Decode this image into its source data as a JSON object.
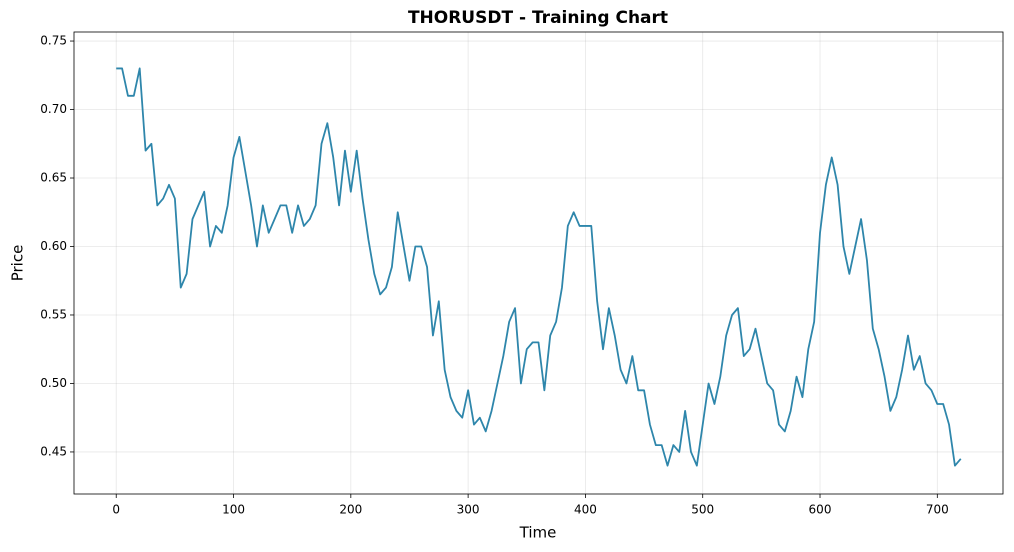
{
  "chart_data": {
    "type": "line",
    "title": "THORUSDT - Training Chart",
    "x_label": "Time",
    "y_label": "Price",
    "x": [
      0,
      5,
      10,
      15,
      20,
      25,
      30,
      35,
      40,
      45,
      50,
      55,
      60,
      65,
      70,
      75,
      80,
      85,
      90,
      95,
      100,
      105,
      110,
      115,
      120,
      125,
      130,
      135,
      140,
      145,
      150,
      155,
      160,
      165,
      170,
      175,
      180,
      185,
      190,
      195,
      200,
      205,
      210,
      215,
      220,
      225,
      230,
      235,
      240,
      245,
      250,
      255,
      260,
      265,
      270,
      275,
      280,
      285,
      290,
      295,
      300,
      305,
      310,
      315,
      320,
      325,
      330,
      335,
      340,
      345,
      350,
      355,
      360,
      365,
      370,
      375,
      380,
      385,
      390,
      395,
      400,
      405,
      410,
      415,
      420,
      425,
      430,
      435,
      440,
      445,
      450,
      455,
      460,
      465,
      470,
      475,
      480,
      485,
      490,
      495,
      500,
      505,
      510,
      515,
      520,
      525,
      530,
      535,
      540,
      545,
      550,
      555,
      560,
      565,
      570,
      575,
      580,
      585,
      590,
      595,
      600,
      605,
      610,
      615,
      620,
      625,
      630,
      635,
      640,
      645,
      650,
      655,
      660,
      665,
      670,
      675,
      680,
      685,
      690,
      695,
      700,
      705,
      710,
      715,
      720
    ],
    "series": [
      {
        "name": "THORUSDT",
        "color": "#2e86ab",
        "values": [
          0.73,
          0.73,
          0.71,
          0.71,
          0.73,
          0.67,
          0.675,
          0.63,
          0.635,
          0.645,
          0.635,
          0.57,
          0.58,
          0.62,
          0.63,
          0.64,
          0.6,
          0.615,
          0.61,
          0.63,
          0.665,
          0.68,
          0.655,
          0.63,
          0.6,
          0.63,
          0.61,
          0.62,
          0.63,
          0.63,
          0.61,
          0.63,
          0.615,
          0.62,
          0.63,
          0.675,
          0.69,
          0.665,
          0.63,
          0.67,
          0.64,
          0.67,
          0.635,
          0.605,
          0.58,
          0.565,
          0.57,
          0.585,
          0.625,
          0.6,
          0.575,
          0.6,
          0.6,
          0.585,
          0.535,
          0.56,
          0.51,
          0.49,
          0.48,
          0.475,
          0.495,
          0.47,
          0.475,
          0.465,
          0.48,
          0.5,
          0.52,
          0.545,
          0.555,
          0.5,
          0.525,
          0.53,
          0.53,
          0.495,
          0.535,
          0.545,
          0.57,
          0.615,
          0.625,
          0.615,
          0.615,
          0.615,
          0.56,
          0.525,
          0.555,
          0.535,
          0.51,
          0.5,
          0.52,
          0.495,
          0.495,
          0.47,
          0.455,
          0.455,
          0.44,
          0.455,
          0.45,
          0.48,
          0.45,
          0.44,
          0.47,
          0.5,
          0.485,
          0.505,
          0.535,
          0.55,
          0.555,
          0.52,
          0.525,
          0.54,
          0.52,
          0.5,
          0.495,
          0.47,
          0.465,
          0.48,
          0.505,
          0.49,
          0.525,
          0.545,
          0.61,
          0.645,
          0.665,
          0.645,
          0.6,
          0.58,
          0.6,
          0.62,
          0.59,
          0.54,
          0.525,
          0.505,
          0.48,
          0.49,
          0.51,
          0.535,
          0.51,
          0.52,
          0.5,
          0.495,
          0.485,
          0.485,
          0.47,
          0.44,
          0.445
        ]
      }
    ],
    "xlim": [
      -36,
      756
    ],
    "ylim": [
      0.4193,
      0.7566
    ],
    "xticks": [
      0,
      100,
      200,
      300,
      400,
      500,
      600,
      700
    ],
    "yticks": [
      0.45,
      {
        "value": 0.5,
        "label": "0.50"
      },
      0.55,
      {
        "value": 0.6,
        "label": "0.60"
      },
      0.65,
      {
        "value": 0.7,
        "label": "0.70"
      },
      0.75
    ],
    "grid": true
  }
}
